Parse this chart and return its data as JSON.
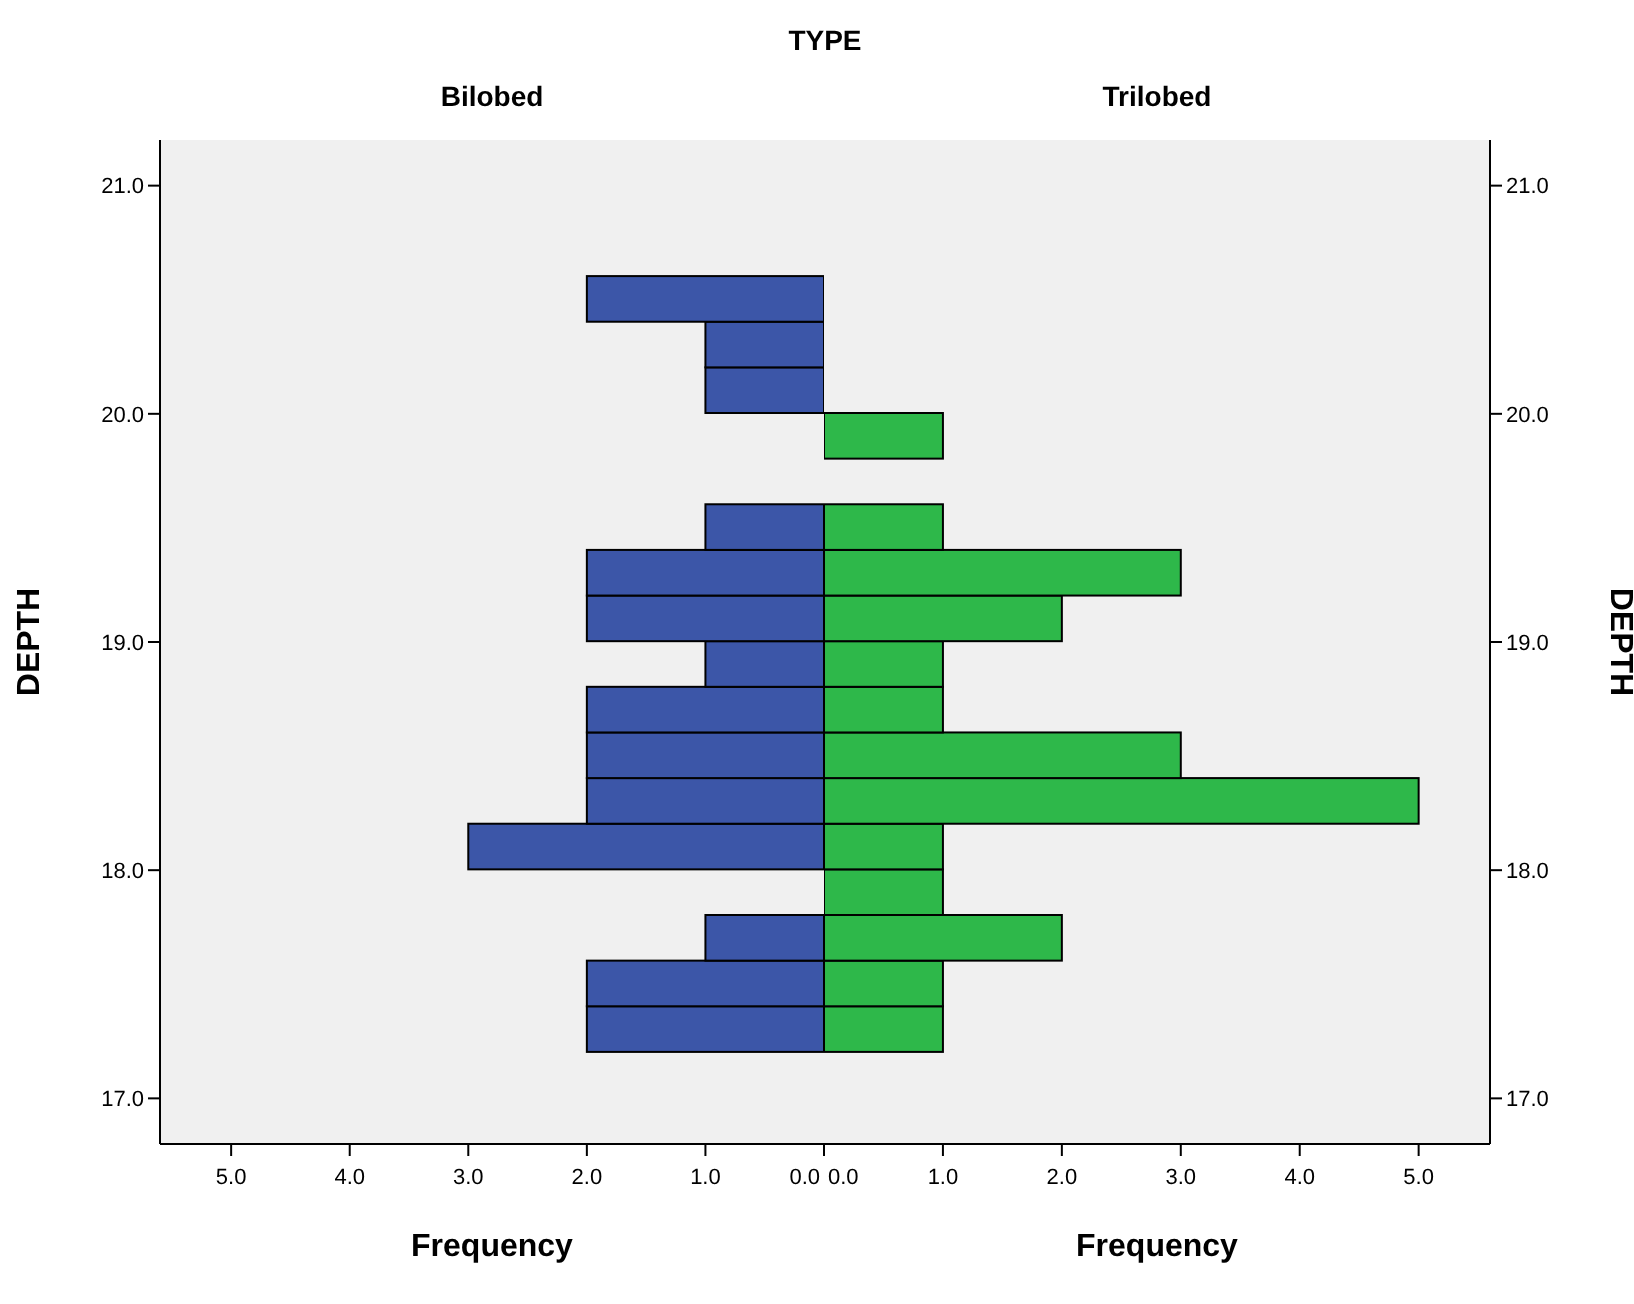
{
  "chart_data": [
    {
      "type": "histogram",
      "title": "TYPE",
      "subtitle": "Bilobed",
      "orientation": "horizontal",
      "xlabel": "Frequency",
      "ylabel": "DEPTH",
      "color": "#3c56a8",
      "bins": [
        17.2,
        17.4,
        17.6,
        17.8,
        18.0,
        18.2,
        18.4,
        18.6,
        18.8,
        19.0,
        19.2,
        19.4,
        19.6,
        19.8,
        20.0,
        20.2,
        20.4,
        20.6
      ],
      "values": [
        2,
        2,
        1,
        0,
        3,
        2,
        2,
        2,
        1,
        2,
        2,
        1,
        0,
        0,
        1,
        1,
        2
      ],
      "xlim": [
        5.6,
        0
      ],
      "xticks": [
        {
          "value": 5,
          "label": "5.0"
        },
        {
          "value": 4,
          "label": "4.0"
        },
        {
          "value": 3,
          "label": "3.0"
        },
        {
          "value": 2,
          "label": "2.0"
        },
        {
          "value": 1,
          "label": "1.0"
        },
        {
          "value": 0,
          "label": "0.0"
        }
      ],
      "ylim": [
        16.8,
        21.2
      ],
      "yticks": [
        {
          "value": 17,
          "label": "17.0"
        },
        {
          "value": 18,
          "label": "18.0"
        },
        {
          "value": 19,
          "label": "19.0"
        },
        {
          "value": 20,
          "label": "20.0"
        },
        {
          "value": 21,
          "label": "21.0"
        }
      ],
      "grid": false,
      "legend": false
    },
    {
      "type": "histogram",
      "subtitle": "Trilobed",
      "orientation": "horizontal",
      "xlabel": "Frequency",
      "ylabel": "DEPTH",
      "color": "#2eb84a",
      "bins": [
        17.2,
        17.4,
        17.6,
        17.8,
        18.0,
        18.2,
        18.4,
        18.6,
        18.8,
        19.0,
        19.2,
        19.4,
        19.6,
        19.8,
        20.0,
        20.2,
        20.4,
        20.6
      ],
      "values": [
        1,
        1,
        2,
        1,
        1,
        5,
        3,
        1,
        1,
        2,
        3,
        1,
        0,
        1,
        0,
        0,
        0
      ],
      "xlim": [
        0,
        5.6
      ],
      "xticks": [
        {
          "value": 0,
          "label": "0.0"
        },
        {
          "value": 1,
          "label": "1.0"
        },
        {
          "value": 2,
          "label": "2.0"
        },
        {
          "value": 3,
          "label": "3.0"
        },
        {
          "value": 4,
          "label": "4.0"
        },
        {
          "value": 5,
          "label": "5.0"
        }
      ],
      "ylim": [
        16.8,
        21.2
      ],
      "yticks": [
        {
          "value": 17,
          "label": "17.0"
        },
        {
          "value": 18,
          "label": "18.0"
        },
        {
          "value": 19,
          "label": "19.0"
        },
        {
          "value": 20,
          "label": "20.0"
        },
        {
          "value": 21,
          "label": "21.0"
        }
      ],
      "grid": false,
      "legend": false
    }
  ]
}
